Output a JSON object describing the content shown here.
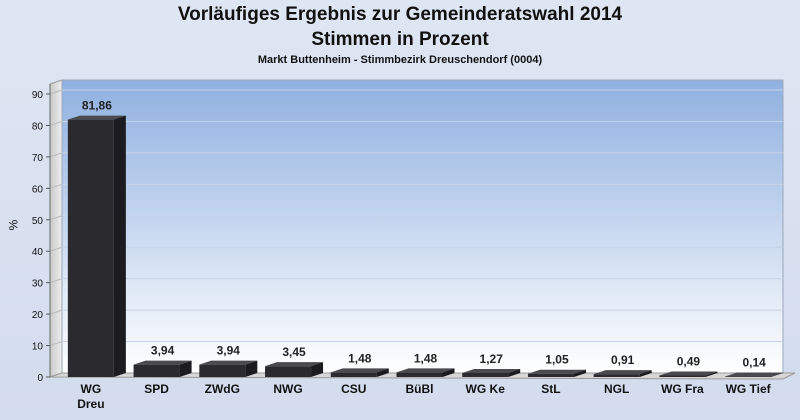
{
  "chart_data": {
    "type": "bar",
    "title": "Vorläufiges Ergebnis zur Gemeinderatswahl 2014",
    "subtitle": "Stimmen in Prozent",
    "subsubtitle": "Markt Buttenheim - Stimmbezirk Dreuschendorf (0004)",
    "ylabel": "%",
    "xlabel": "",
    "ylim": [
      0,
      90
    ],
    "yticks": [
      0,
      10,
      20,
      30,
      40,
      50,
      60,
      70,
      80,
      90
    ],
    "categories": [
      "WG Dreu",
      "SPD",
      "ZWdG",
      "NWG",
      "CSU",
      "BüBl",
      "WG Ke",
      "StL",
      "NGL",
      "WG Fra",
      "WG Tief"
    ],
    "values": [
      81.86,
      3.94,
      3.94,
      3.45,
      1.48,
      1.48,
      1.27,
      1.05,
      0.91,
      0.49,
      0.14
    ],
    "value_labels": [
      "81,86",
      "3,94",
      "3,94",
      "3,45",
      "1,48",
      "1,48",
      "1,27",
      "1,05",
      "0,91",
      "0,49",
      "0,14"
    ],
    "category_labels": [
      [
        "WG",
        "Dreu"
      ],
      [
        "SPD"
      ],
      [
        "ZWdG"
      ],
      [
        "NWG"
      ],
      [
        "CSU"
      ],
      [
        "BüBl"
      ],
      [
        "WG Ke"
      ],
      [
        "StL"
      ],
      [
        "NGL"
      ],
      [
        "WG Fra"
      ],
      [
        "WG Tief"
      ]
    ],
    "grid": true,
    "colors": {
      "bar_front": "#2b2b2f",
      "bar_top": "#4a4a4f",
      "bar_side": "#1c1c20",
      "plot_top": "#8fb0e0",
      "plot_bottom": "#ffffff"
    }
  }
}
